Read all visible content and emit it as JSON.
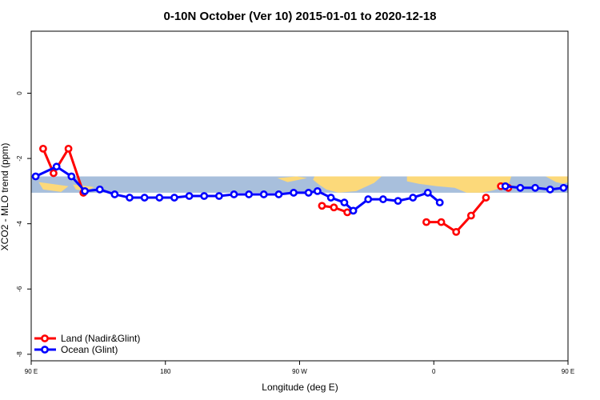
{
  "chart_data": {
    "type": "line",
    "title": "0-10N October (Ver 10)   2015-01-01 to 2020-12-18",
    "xlabel": "Longitude (deg E)",
    "ylabel": "XCO2 - MLO trend (ppm)",
    "xlim": [
      90,
      450
    ],
    "ylim": [
      -8.2,
      1.9
    ],
    "x_ticks": [
      {
        "value": 90,
        "label": "90 E"
      },
      {
        "value": 180,
        "label": "180"
      },
      {
        "value": 270,
        "label": "90 W"
      },
      {
        "value": 360,
        "label": "0"
      },
      {
        "value": 450,
        "label": "90 E"
      },
      {
        "value": 540,
        "label": "180"
      }
    ],
    "y_ticks": [
      {
        "value": 0,
        "label": "0"
      },
      {
        "value": -2,
        "label": "-2"
      },
      {
        "value": -4,
        "label": "-4"
      },
      {
        "value": -6,
        "label": "-6"
      },
      {
        "value": -8,
        "label": "-8"
      }
    ],
    "map_band": {
      "y_top": -2.55,
      "y_bottom": -3.05,
      "ocean_color": "#a8bfdc",
      "land_color": "#fcd97a"
    },
    "legend": {
      "placement": "bottom-left"
    },
    "grid": false,
    "series": [
      {
        "name": "Land (Nadir&Glint)",
        "color": "#ff0000",
        "segments": [
          {
            "x": [
              98,
              105,
              115,
              125
            ],
            "y": [
              -1.7,
              -2.45,
              -1.7,
              -3.05
            ]
          },
          {
            "x": [
              285,
              293,
              302
            ],
            "y": [
              -3.45,
              -3.5,
              -3.65
            ]
          },
          {
            "x": [
              355,
              365,
              375,
              385,
              395
            ],
            "y": [
              -3.95,
              -3.95,
              -4.25,
              -3.75,
              -3.2
            ]
          },
          {
            "x": [
              405,
              410
            ],
            "y": [
              -2.85,
              -2.9
            ]
          },
          {
            "x": [
              485,
              495,
              505,
              515,
              525
            ],
            "y": [
              -3.15,
              -1.7,
              -2.45,
              -1.7,
              -3.05
            ]
          }
        ]
      },
      {
        "name": "Ocean (Glint)",
        "color": "#0000ff",
        "segments": [
          {
            "x": [
              93,
              107,
              117,
              126,
              136,
              146,
              156,
              166,
              176,
              186,
              196,
              206,
              216,
              226,
              236,
              246,
              256,
              266,
              276,
              282,
              291,
              300,
              306,
              316,
              326,
              336,
              346,
              356,
              364
            ],
            "y": [
              -2.55,
              -2.25,
              -2.55,
              -3.0,
              -2.95,
              -3.1,
              -3.2,
              -3.2,
              -3.2,
              -3.2,
              -3.15,
              -3.15,
              -3.15,
              -3.1,
              -3.1,
              -3.1,
              -3.1,
              -3.05,
              -3.05,
              -3.0,
              -3.2,
              -3.35,
              -3.6,
              -3.25,
              -3.25,
              -3.3,
              -3.2,
              -3.05,
              -3.35
            ]
          },
          {
            "x": [
              408,
              418,
              428,
              438,
              447,
              458,
              468,
              478,
              488,
              498,
              508,
              519,
              529
            ],
            "y": [
              -2.85,
              -2.9,
              -2.9,
              -2.95,
              -2.9,
              -2.7,
              -2.55,
              -2.25,
              -2.6,
              -3.0,
              -2.95,
              -3.05,
              -3.15
            ]
          }
        ]
      }
    ]
  }
}
